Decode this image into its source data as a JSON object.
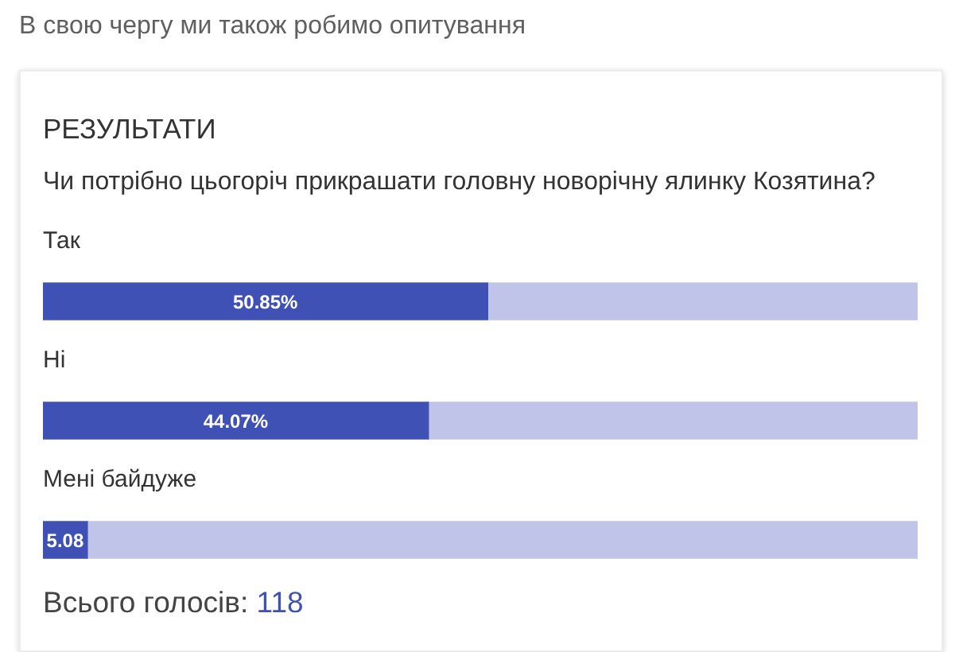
{
  "chart_data": {
    "type": "bar",
    "orientation": "horizontal",
    "stacked": true,
    "title": "РЕЗУЛЬТАТИ",
    "subtitle": "Чи потрібно цьогоріч прикрашати головну новорічну ялинку Козятина?",
    "categories": [
      "Так",
      "Ні",
      "Мені байдуже"
    ],
    "series": [
      {
        "color": "#3f51b5",
        "values": [
          50.85,
          44.07,
          5.08
        ],
        "value_labels": [
          "50.85%",
          "44.07%",
          "5.08"
        ]
      },
      {
        "color": "#bfc4e8",
        "values": [
          49.15,
          55.93,
          94.92
        ]
      }
    ],
    "xlim": [
      0,
      100
    ],
    "tick_labels": "y",
    "annotations": [
      "В свою чергу ми також робимо опитування",
      "Всього голосів: 118"
    ]
  }
}
